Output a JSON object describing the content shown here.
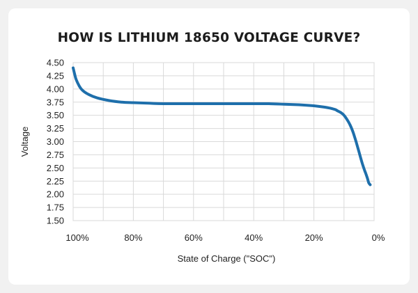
{
  "chart_data": {
    "type": "line",
    "title": "HOW IS LITHIUM 18650 VOLTAGE CURVE?",
    "xlabel": "State of Charge (\"SOC\")",
    "ylabel": "Voltage",
    "xlim": [
      100,
      0
    ],
    "ylim": [
      1.5,
      4.5
    ],
    "xticks": [
      100,
      80,
      60,
      40,
      20,
      0
    ],
    "xtick_labels": [
      "100%",
      "80%",
      "60%",
      "40%",
      "20%",
      "0%"
    ],
    "yticks": [
      4.5,
      4.25,
      4.0,
      3.75,
      3.5,
      3.25,
      3.0,
      2.75,
      2.5,
      2.25,
      2.0,
      1.75,
      1.5
    ],
    "ytick_labels": [
      "4.50",
      "4.25",
      "4.00",
      "3.75",
      "3.50",
      "3.25",
      "3.00",
      "2.75",
      "2.50",
      "2.25",
      "2.00",
      "1.75",
      "1.50"
    ],
    "grid": true,
    "line_color": "#1e6fab",
    "series": [
      {
        "x": [
          100,
          99.5,
          99,
          98,
          97,
          95,
          92,
          88,
          84,
          80,
          75,
          70,
          60,
          50,
          40,
          35,
          30,
          25,
          20,
          17,
          15,
          13,
          12,
          11,
          10,
          9,
          8,
          7,
          6,
          5,
          4,
          3.2,
          2.8,
          2.2,
          1.8,
          1.3
        ],
        "y": [
          4.4,
          4.28,
          4.18,
          4.06,
          3.98,
          3.9,
          3.83,
          3.78,
          3.75,
          3.74,
          3.73,
          3.72,
          3.72,
          3.72,
          3.72,
          3.72,
          3.71,
          3.7,
          3.68,
          3.66,
          3.64,
          3.61,
          3.58,
          3.55,
          3.5,
          3.42,
          3.32,
          3.18,
          3.0,
          2.8,
          2.6,
          2.46,
          2.4,
          2.3,
          2.22,
          2.18
        ]
      }
    ]
  }
}
